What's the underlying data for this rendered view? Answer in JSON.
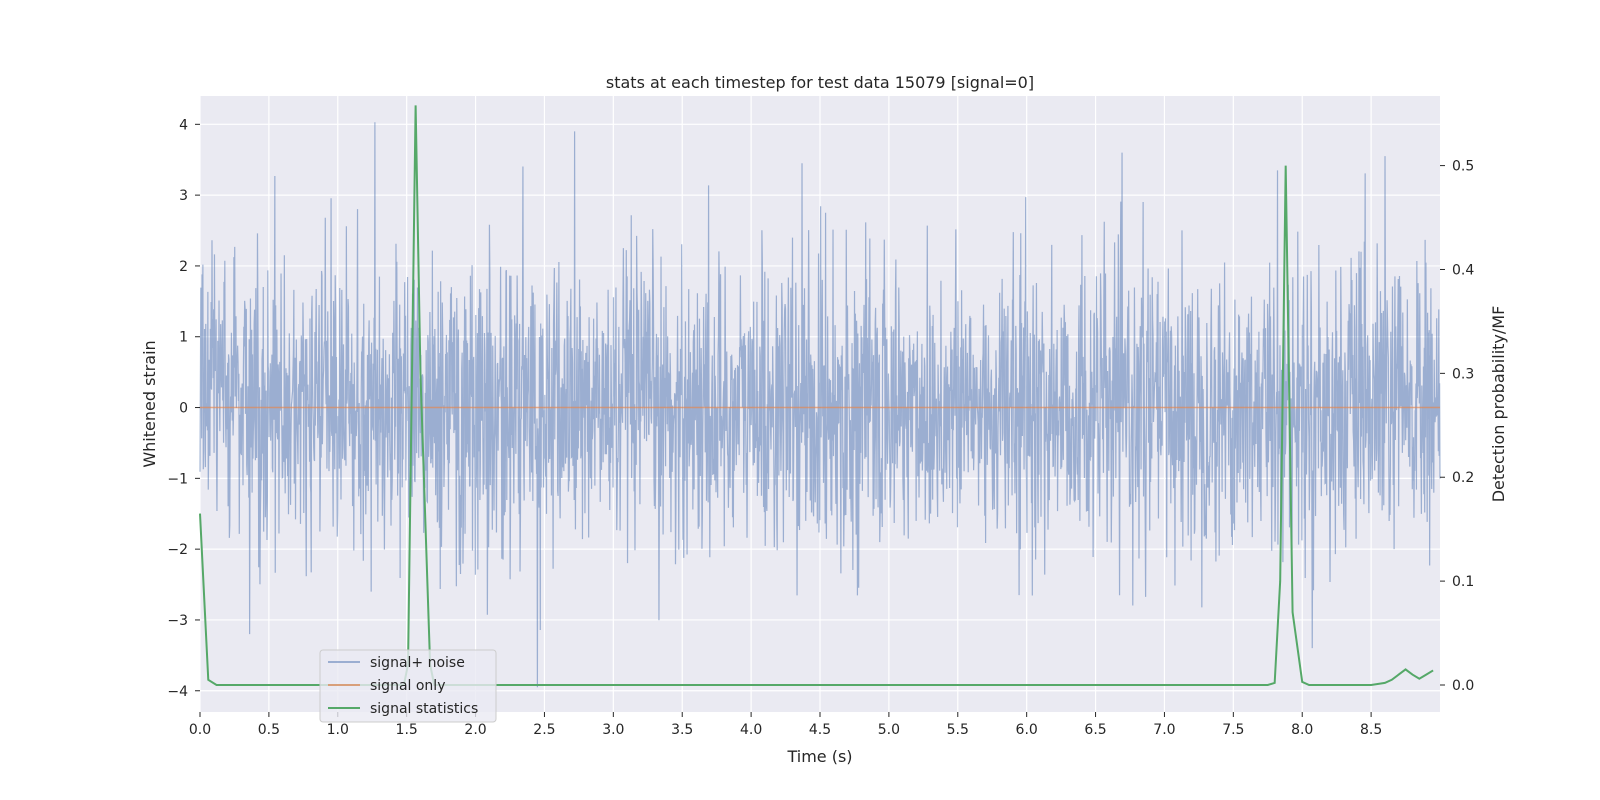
{
  "chart_data": {
    "type": "line",
    "title": "stats at each timestep for test data 15079 [signal=0]",
    "xlabel": "Time (s)",
    "ylabel": "Whitened strain",
    "y2label": "Detection probability/MF",
    "xlim": [
      0.0,
      9.0
    ],
    "ylim": [
      -4.3,
      4.4
    ],
    "y2lim": [
      -0.026,
      0.567
    ],
    "xticks": [
      0.0,
      0.5,
      1.0,
      1.5,
      2.0,
      2.5,
      3.0,
      3.5,
      4.0,
      4.5,
      5.0,
      5.5,
      6.0,
      6.5,
      7.0,
      7.5,
      8.0,
      8.5
    ],
    "xtick_labels": [
      "0.0",
      "0.5",
      "1.0",
      "1.5",
      "2.0",
      "2.5",
      "3.0",
      "3.5",
      "4.0",
      "4.5",
      "5.0",
      "5.5",
      "6.0",
      "6.5",
      "7.0",
      "7.5",
      "8.0",
      "8.5"
    ],
    "yticks": [
      -4,
      -3,
      -2,
      -1,
      0,
      1,
      2,
      3,
      4
    ],
    "ytick_labels": [
      "−4",
      "−3",
      "−2",
      "−1",
      "0",
      "1",
      "2",
      "3",
      "4"
    ],
    "y2ticks": [
      0.0,
      0.1,
      0.2,
      0.3,
      0.4,
      0.5
    ],
    "y2tick_labels": [
      "0.0",
      "0.1",
      "0.2",
      "0.3",
      "0.4",
      "0.5"
    ],
    "grid": true,
    "legend_position": "lower-left",
    "series": [
      {
        "name": "signal+ noise",
        "axis": "left",
        "color": "#4c72b0",
        "style": "dense-noise",
        "amplitude_std": 1.0,
        "x_range": [
          0.0,
          9.0
        ],
        "note_peaks": [
          [
            1.27,
            4.03
          ],
          [
            2.72,
            3.9
          ],
          [
            4.37,
            3.45
          ],
          [
            8.6,
            3.55
          ],
          [
            7.82,
            3.35
          ],
          [
            2.45,
            -3.95
          ],
          [
            0.36,
            -3.2
          ]
        ]
      },
      {
        "name": "signal only",
        "axis": "left",
        "color": "#dd8452",
        "x": [
          0.0,
          9.0
        ],
        "y": [
          0.0,
          0.0
        ]
      },
      {
        "name": "signal statistics",
        "axis": "right",
        "color": "#55a868",
        "x": [
          0.0,
          0.06,
          0.12,
          0.25,
          1.48,
          1.51,
          1.565,
          1.6,
          1.67,
          1.7,
          7.75,
          7.8,
          7.84,
          7.88,
          7.93,
          8.0,
          8.05,
          8.5,
          8.6,
          8.65,
          8.7,
          8.75,
          8.8,
          8.85,
          8.9,
          8.95
        ],
        "y": [
          0.165,
          0.005,
          0.0,
          0.0,
          0.0,
          0.02,
          0.558,
          0.3,
          0.02,
          0.0,
          0.0,
          0.002,
          0.1,
          0.5,
          0.07,
          0.003,
          0.0,
          0.0,
          0.002,
          0.005,
          0.01,
          0.015,
          0.01,
          0.006,
          0.01,
          0.014
        ]
      }
    ]
  }
}
